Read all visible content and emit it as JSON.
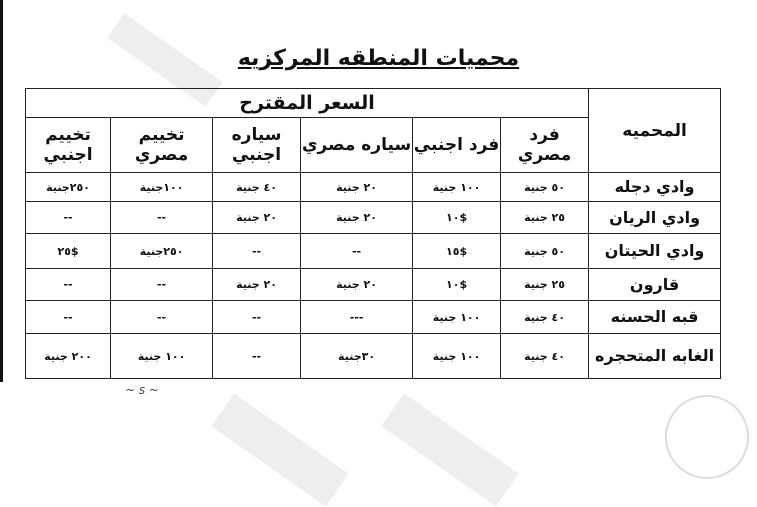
{
  "title": "محميات المنطقه المركزيه",
  "table": {
    "name_header": "المحميه",
    "group_header": "السعر المقترح",
    "columns": [
      "فرد مصري",
      "فرد اجنبي",
      "سياره مصري",
      "سياره اجنبي",
      "تخييم مصري",
      "تخييم اجنبي"
    ],
    "rows": [
      {
        "name": "وادي دجله",
        "values": [
          "٥٠ جنية",
          "١٠٠ جنية",
          "٢٠ جنية",
          "٤٠ جنية",
          "١٠٠جنية",
          "٢٥٠جنية"
        ]
      },
      {
        "name": "وادي الريان",
        "values": [
          "٢٥ جنية",
          "$١٠",
          "٢٠ جنية",
          "٢٠ جنية",
          "--",
          "--"
        ]
      },
      {
        "name": "وادي الحيتان",
        "values": [
          "٥٠ جنية",
          "$١٥",
          "--",
          "--",
          "٢٥٠جنية",
          "$٢٥"
        ]
      },
      {
        "name": "قارون",
        "values": [
          "٢٥ جنية",
          "$١٠",
          "٢٠ جنية",
          "٢٠ جنية",
          "--",
          "--"
        ]
      },
      {
        "name": "قبه الحسنه",
        "values": [
          "٤٠ جنية",
          "١٠٠ جنية",
          "---",
          "--",
          "--",
          "--"
        ]
      },
      {
        "name": "الغابه المتحجره",
        "values": [
          "٤٠ جنية",
          "١٠٠ جنية",
          "٣٠جنية",
          "--",
          "١٠٠ جنية",
          "٢٠٠ جنية"
        ]
      }
    ]
  }
}
